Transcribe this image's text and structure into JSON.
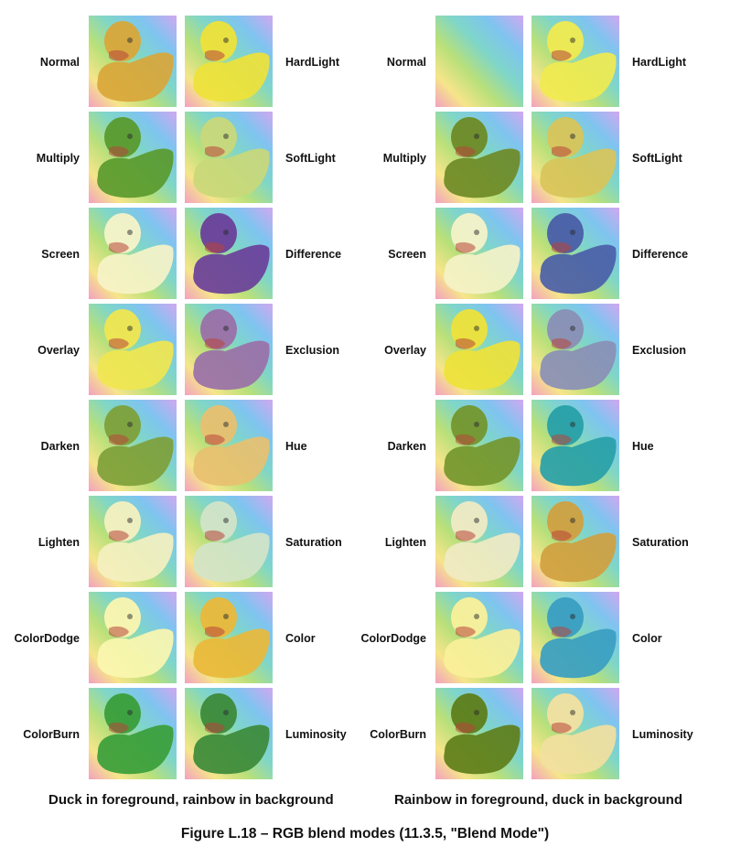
{
  "panels": [
    {
      "id": "duck-fg",
      "caption": "Duck in foreground, rainbow in background",
      "left_labels": [
        "Normal",
        "Multiply",
        "Screen",
        "Overlay",
        "Darken",
        "Lighten",
        "ColorDodge",
        "ColorBurn"
      ],
      "right_labels": [
        "HardLight",
        "SoftLight",
        "Difference",
        "Exclusion",
        "Hue",
        "Saturation",
        "Color",
        "Luminosity"
      ]
    },
    {
      "id": "rainbow-fg",
      "caption": "Rainbow in foreground, duck in background",
      "left_labels": [
        "Normal",
        "Multiply",
        "Screen",
        "Overlay",
        "Darken",
        "Lighten",
        "ColorDodge",
        "ColorBurn"
      ],
      "right_labels": [
        "HardLight",
        "SoftLight",
        "Difference",
        "Exclusion",
        "Hue",
        "Saturation",
        "Color",
        "Luminosity"
      ]
    }
  ],
  "figure_caption": "Figure L.18 –  RGB blend modes (11.3.5, \"Blend Mode\")",
  "duck_colors": {
    "duck-fg": {
      "Normal": "#d9a63a",
      "Multiply": "#5a9a2e",
      "Screen": "#f6f3c8",
      "Overlay": "#f0e650",
      "Darken": "#7ea03a",
      "Lighten": "#f4f0c0",
      "ColorDodge": "#fbf6b0",
      "ColorBurn": "#3a9e3a",
      "HardLight": "#eee23a",
      "SoftLight": "#c9d87a",
      "Difference": "#6a3f9a",
      "Exclusion": "#9a70a8",
      "Hue": "#e8c070",
      "Saturation": "#d2e4c8",
      "Color": "#eab83a",
      "Luminosity": "#3c8a3a"
    },
    "rainbow-fg": {
      "Normal": "none",
      "Multiply": "#6e8a26",
      "Screen": "#f4f2c8",
      "Overlay": "#eee23a",
      "Darken": "#74962e",
      "Lighten": "#f0eac4",
      "ColorDodge": "#faf09a",
      "ColorBurn": "#5e7e1a",
      "HardLight": "#f0ea50",
      "SoftLight": "#d8c45a",
      "Difference": "#4a5ea8",
      "Exclusion": "#8a8fb6",
      "Hue": "#28a0a8",
      "Saturation": "#d0a040",
      "Color": "#3a9ec2",
      "Luminosity": "#f2e0a0"
    }
  }
}
